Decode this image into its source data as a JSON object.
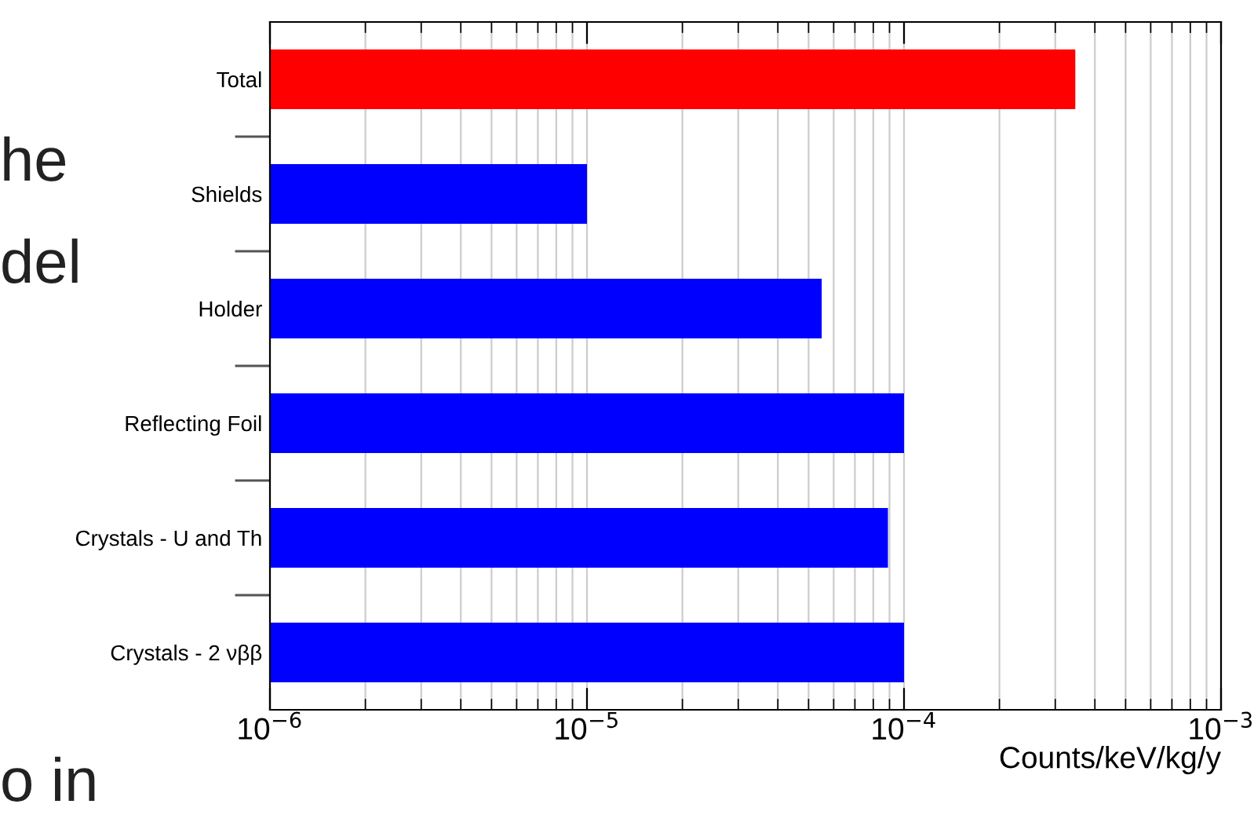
{
  "chart_data": {
    "type": "bar",
    "orientation": "horizontal",
    "log": "x",
    "categories": [
      "Total",
      "Shields",
      "Holder",
      "Reflecting Foil",
      "Crystals - U and Th",
      "Crystals - 2 νββ"
    ],
    "values": [
      0.000347,
      1e-05,
      5.5e-05,
      0.0001,
      8.9e-05,
      0.0001
    ],
    "colors": [
      "#ff0000",
      "#0000ff",
      "#0000ff",
      "#0000ff",
      "#0000ff",
      "#0000ff"
    ],
    "xlim": [
      1e-06,
      0.001
    ],
    "xticks": [
      {
        "value": 1e-06,
        "label": "10$^{−6}$"
      },
      {
        "value": 1e-05,
        "label": "10$^{−5}$"
      },
      {
        "value": 0.0001,
        "label": "10$^{−4}$"
      },
      {
        "value": 0.001,
        "label": "10$^{−3}$"
      }
    ],
    "xlabel": "Counts/keV/kg/y",
    "grid": "x",
    "annotations": [
      "he",
      "del",
      "o in"
    ]
  }
}
